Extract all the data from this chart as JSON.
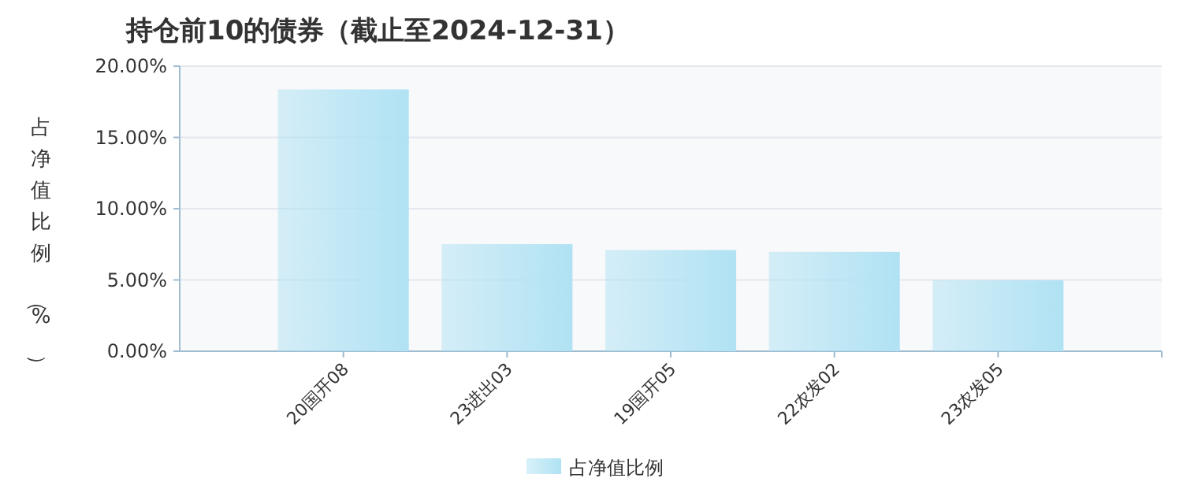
{
  "chart_data": {
    "type": "bar",
    "title": "持仓前10的债券（截止至2024-12-31）",
    "ylabel": "占净值比例（%）",
    "categories": [
      "20国开08",
      "23进出03",
      "19国开05",
      "22农发02",
      "23农发05"
    ],
    "series": [
      {
        "name": "占净值比例",
        "color": "#b0e2f3",
        "values": [
          18.37,
          7.51,
          7.1,
          6.97,
          4.98
        ]
      }
    ],
    "ylim": [
      0,
      20
    ],
    "yticks": [
      {
        "value": 0,
        "label": "0.00%"
      },
      {
        "value": 5,
        "label": "5.00%"
      },
      {
        "value": 10,
        "label": "10.00%"
      },
      {
        "value": 15,
        "label": "15.00%"
      },
      {
        "value": 20,
        "label": "20.00%"
      }
    ],
    "grid": "y",
    "legend": "bottom"
  }
}
